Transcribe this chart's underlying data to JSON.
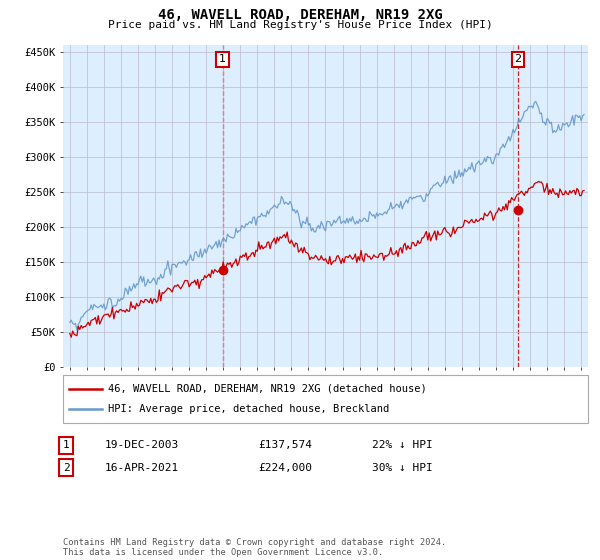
{
  "title": "46, WAVELL ROAD, DEREHAM, NR19 2XG",
  "subtitle": "Price paid vs. HM Land Registry's House Price Index (HPI)",
  "ylabel_ticks": [
    "£0",
    "£50K",
    "£100K",
    "£150K",
    "£200K",
    "£250K",
    "£300K",
    "£350K",
    "£400K",
    "£450K"
  ],
  "ytick_values": [
    0,
    50000,
    100000,
    150000,
    200000,
    250000,
    300000,
    350000,
    400000,
    450000
  ],
  "ylim": [
    0,
    460000
  ],
  "xlim_start": 1994.6,
  "xlim_end": 2025.4,
  "transaction1": {
    "date_num": 2003.97,
    "price": 137574,
    "label": "1"
  },
  "transaction2": {
    "date_num": 2021.29,
    "price": 224000,
    "label": "2"
  },
  "legend_line1": "46, WAVELL ROAD, DEREHAM, NR19 2XG (detached house)",
  "legend_line2": "HPI: Average price, detached house, Breckland",
  "table_row1": [
    "1",
    "19-DEC-2003",
    "£137,574",
    "22% ↓ HPI"
  ],
  "table_row2": [
    "2",
    "16-APR-2021",
    "£224,000",
    "30% ↓ HPI"
  ],
  "footnote": "Contains HM Land Registry data © Crown copyright and database right 2024.\nThis data is licensed under the Open Government Licence v3.0.",
  "color_red": "#cc0000",
  "color_blue": "#6699cc",
  "bg_fill_color": "#ddeeff",
  "background_color": "#ffffff",
  "grid_color": "#bbbbcc"
}
